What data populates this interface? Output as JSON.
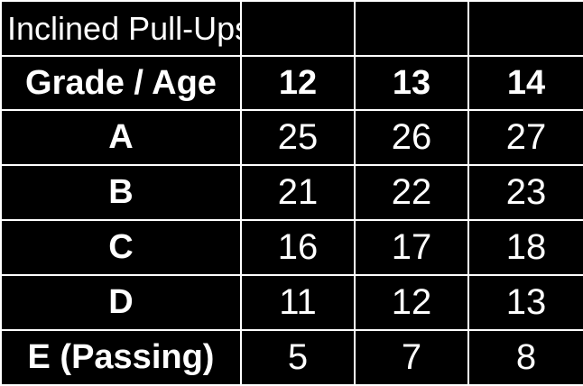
{
  "table": {
    "title": "Inclined Pull-Ups",
    "header": {
      "label": "Grade / Age",
      "ages": [
        "12",
        "13",
        "14"
      ]
    },
    "rows": [
      {
        "grade": "A",
        "values": [
          "25",
          "26",
          "27"
        ]
      },
      {
        "grade": "B",
        "values": [
          "21",
          "22",
          "23"
        ]
      },
      {
        "grade": "C",
        "values": [
          "16",
          "17",
          "18"
        ]
      },
      {
        "grade": "D",
        "values": [
          "11",
          "12",
          "13"
        ]
      },
      {
        "grade": "E (Passing)",
        "values": [
          "5",
          "7",
          "8"
        ]
      }
    ]
  },
  "colors": {
    "background": "#000000",
    "text": "#ffffff",
    "border": "#ffffff"
  }
}
